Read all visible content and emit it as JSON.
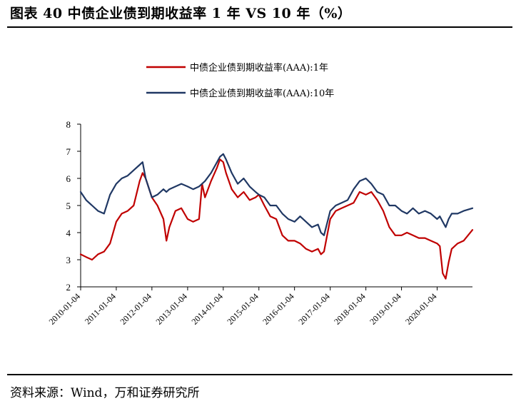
{
  "figure": {
    "title": "图表 40   中债企业债到期收益率 1 年 VS 10 年（%）",
    "source": "资料来源：Wind，万和证券研究所"
  },
  "chart_data": {
    "type": "line",
    "legend_position": "top-center",
    "grid": false,
    "ylim": [
      2,
      8
    ],
    "yticks": [
      "8",
      "7",
      "6",
      "5",
      "4",
      "3",
      "2"
    ],
    "xlim": [
      "2010-01-04",
      "2020-12-31"
    ],
    "x_tick_labels": [
      "2010-01-04",
      "2011-01-04",
      "2012-01-04",
      "2013-01-04",
      "2014-01-04",
      "2015-01-04",
      "2016-01-04",
      "2017-01-04",
      "2018-01-04",
      "2019-01-04",
      "2020-01-04"
    ],
    "x": [
      "2010-01-04",
      "2010-03-01",
      "2010-05-01",
      "2010-07-01",
      "2010-09-01",
      "2010-11-01",
      "2011-01-04",
      "2011-03-01",
      "2011-05-01",
      "2011-07-01",
      "2011-09-01",
      "2011-10-01",
      "2011-11-01",
      "2012-01-04",
      "2012-03-01",
      "2012-05-01",
      "2012-06-01",
      "2012-07-01",
      "2012-09-01",
      "2012-11-01",
      "2013-01-04",
      "2013-03-01",
      "2013-05-01",
      "2013-06-01",
      "2013-07-01",
      "2013-09-01",
      "2013-11-01",
      "2013-12-01",
      "2014-01-04",
      "2014-02-01",
      "2014-04-01",
      "2014-06-01",
      "2014-08-01",
      "2014-10-01",
      "2014-12-01",
      "2015-01-04",
      "2015-03-01",
      "2015-05-01",
      "2015-07-01",
      "2015-09-01",
      "2015-11-01",
      "2016-01-04",
      "2016-03-01",
      "2016-05-01",
      "2016-07-01",
      "2016-09-01",
      "2016-10-01",
      "2016-11-01",
      "2017-01-04",
      "2017-03-01",
      "2017-05-01",
      "2017-07-01",
      "2017-09-01",
      "2017-11-01",
      "2018-01-04",
      "2018-03-01",
      "2018-05-01",
      "2018-07-01",
      "2018-09-01",
      "2018-11-01",
      "2019-01-04",
      "2019-03-01",
      "2019-05-01",
      "2019-07-01",
      "2019-09-01",
      "2019-11-01",
      "2020-01-04",
      "2020-02-01",
      "2020-03-01",
      "2020-04-01",
      "2020-05-01",
      "2020-06-01",
      "2020-08-01",
      "2020-10-01",
      "2020-12-31"
    ],
    "series": [
      {
        "name": "中债企业债到期收益率(AAA):1年",
        "color": "#c00000",
        "values": [
          3.2,
          3.1,
          3.0,
          3.2,
          3.3,
          3.6,
          4.4,
          4.7,
          4.8,
          5.0,
          5.9,
          6.2,
          6.0,
          5.3,
          5.0,
          4.5,
          3.7,
          4.2,
          4.8,
          4.9,
          4.5,
          4.4,
          4.5,
          5.8,
          5.3,
          5.9,
          6.4,
          6.7,
          6.6,
          6.2,
          5.6,
          5.3,
          5.5,
          5.2,
          5.3,
          5.4,
          5.0,
          4.6,
          4.5,
          3.9,
          3.7,
          3.7,
          3.6,
          3.4,
          3.3,
          3.4,
          3.2,
          3.3,
          4.5,
          4.8,
          4.9,
          5.0,
          5.1,
          5.5,
          5.4,
          5.5,
          5.2,
          4.8,
          4.2,
          3.9,
          3.9,
          4.0,
          3.9,
          3.8,
          3.8,
          3.7,
          3.6,
          3.5,
          2.5,
          2.3,
          2.9,
          3.4,
          3.6,
          3.7,
          4.1
        ]
      },
      {
        "name": "中债企业债到期收益率(AAA):10年",
        "color": "#203864",
        "values": [
          5.5,
          5.2,
          5.0,
          4.8,
          4.7,
          5.4,
          5.8,
          6.0,
          6.1,
          6.3,
          6.5,
          6.6,
          6.0,
          5.3,
          5.4,
          5.6,
          5.5,
          5.6,
          5.7,
          5.8,
          5.7,
          5.6,
          5.7,
          5.8,
          5.9,
          6.2,
          6.6,
          6.8,
          6.9,
          6.7,
          6.2,
          5.8,
          6.0,
          5.7,
          5.5,
          5.4,
          5.3,
          5.0,
          5.0,
          4.7,
          4.5,
          4.4,
          4.6,
          4.4,
          4.2,
          4.3,
          4.0,
          3.9,
          4.8,
          5.0,
          5.1,
          5.2,
          5.6,
          5.9,
          6.0,
          5.8,
          5.5,
          5.4,
          5.0,
          5.0,
          4.8,
          4.7,
          4.9,
          4.7,
          4.8,
          4.7,
          4.5,
          4.6,
          4.4,
          4.2,
          4.5,
          4.7,
          4.7,
          4.8,
          4.9
        ]
      }
    ]
  }
}
